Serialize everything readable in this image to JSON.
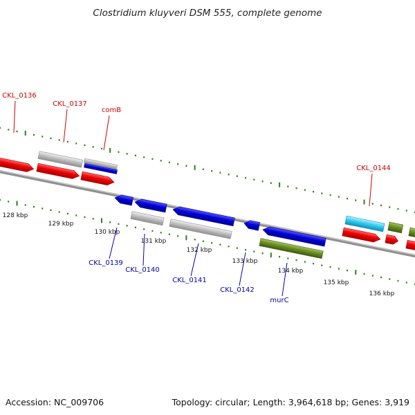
{
  "title": "Clostridium kluyveri DSM 555, complete genome",
  "footer": {
    "accession": "Accession: NC_009706",
    "topology": "Topology: circular; Length: 3,964,618 bp; Genes: 3,919"
  },
  "colors": {
    "forward_label": "#cc0000",
    "reverse_label": "#0000aa",
    "ticks": "#2e7d1e",
    "backbone": "#8a8a8a",
    "red": "#ee0000",
    "gray": "#c0c0c0",
    "blue": "#0000dd",
    "cyan": "#33ccee",
    "olive": "#6b8e23"
  },
  "scale": {
    "tick_labels": [
      "128 kbp",
      "129 kbp",
      "130 kbp",
      "131 kbp",
      "132 kbp",
      "133 kbp",
      "134 kbp",
      "135 kbp",
      "136 kbp"
    ]
  },
  "gene_labels": [
    {
      "name": "CKL_0136",
      "strand": "forward"
    },
    {
      "name": "CKL_0137",
      "strand": "forward"
    },
    {
      "name": "comB",
      "strand": "forward"
    },
    {
      "name": "CKL_0144",
      "strand": "forward"
    },
    {
      "name": "CKL_0139",
      "strand": "reverse"
    },
    {
      "name": "CKL_0140",
      "strand": "reverse"
    },
    {
      "name": "CKL_0141",
      "strand": "reverse"
    },
    {
      "name": "CKL_0142",
      "strand": "reverse"
    },
    {
      "name": "murC",
      "strand": "reverse"
    }
  ]
}
